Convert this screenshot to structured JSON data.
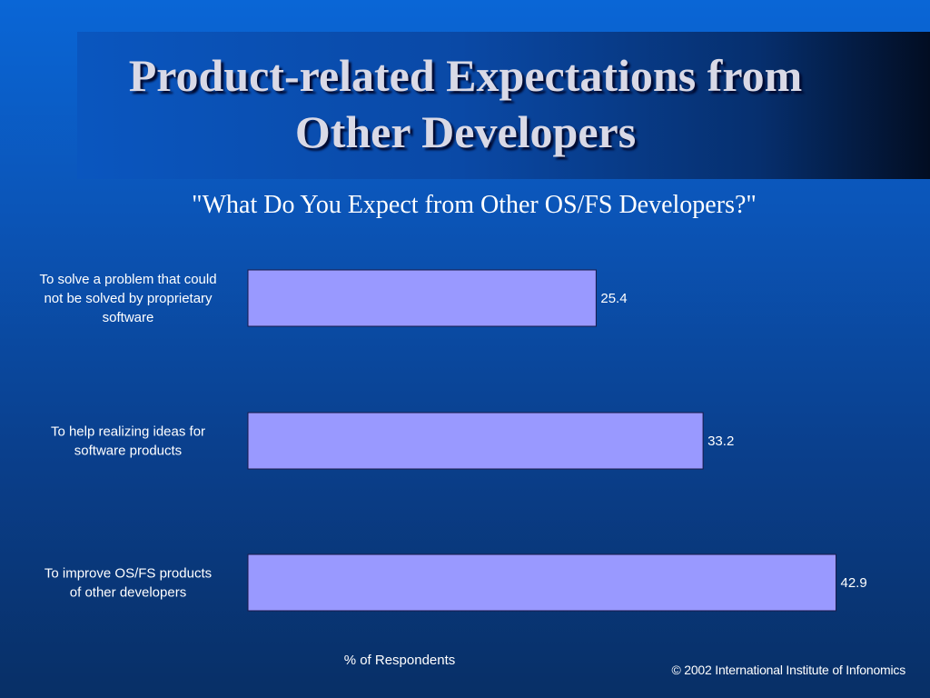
{
  "slide": {
    "title_line1": "Product-related Expectations from",
    "title_line2": "Other Developers",
    "copyright": "© 2002 International Institute of Infonomics"
  },
  "colors": {
    "bar_fill": "#9999ff",
    "bar_stroke": "#1a1a4a",
    "text": "#ffffff"
  },
  "chart_data": {
    "type": "bar",
    "orientation": "horizontal",
    "title": "\"What Do You Expect from Other OS/FS Developers?\"",
    "xlabel": "% of Respondents",
    "ylabel": "",
    "categories": [
      [
        "To solve a problem that could",
        "not be solved by proprietary",
        "software"
      ],
      [
        "To help realizing ideas for",
        "software products"
      ],
      [
        "To improve OS/FS products",
        "of other developers"
      ]
    ],
    "values": [
      25.4,
      33.2,
      42.9
    ],
    "value_labels": [
      "25.4",
      "33.2",
      "42.9"
    ],
    "xlim": [
      0,
      48.1
    ],
    "grid": false,
    "legend": "none"
  }
}
